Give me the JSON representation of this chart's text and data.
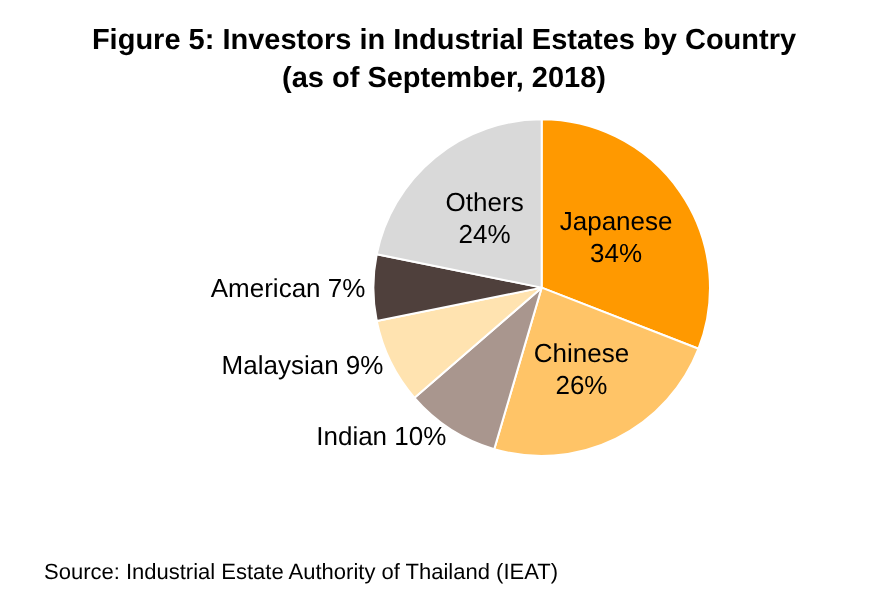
{
  "chart_data": {
    "type": "pie",
    "title": "Figure 5: Investors in Industrial Estates by Country\n(as of September, 2018)",
    "categories": [
      "Japanese",
      "Chinese",
      "Indian",
      "Malaysian",
      "American",
      "Others"
    ],
    "values": [
      34,
      26,
      10,
      9,
      7,
      24
    ],
    "value_labels": [
      "34%",
      "26%",
      "10%",
      "9%",
      "7%",
      "24%"
    ],
    "colors": [
      "#ff9900",
      "#ffc467",
      "#a9968e",
      "#ffe3b0",
      "#4f403c",
      "#d9d9d9"
    ],
    "annotations": [
      "Source: Industrial Estate Authority of Thailand (IEAT)"
    ]
  }
}
